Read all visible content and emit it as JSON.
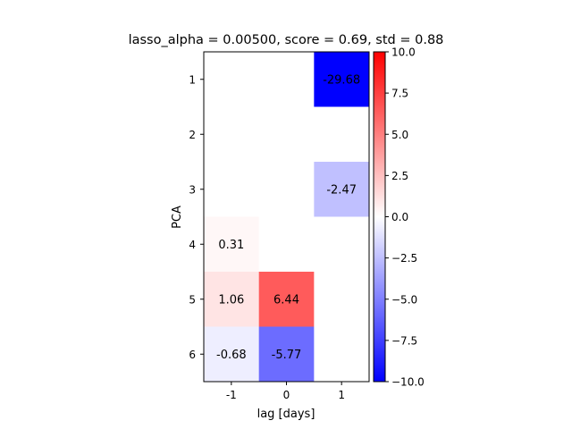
{
  "chart_data": {
    "type": "heatmap",
    "title": "lasso_alpha = 0.00500, score = 0.69, std = 0.88",
    "xlabel": "lag [days]",
    "ylabel": "PCA",
    "x_categories": [
      "-1",
      "0",
      "1"
    ],
    "y_categories": [
      "1",
      "2",
      "3",
      "4",
      "5",
      "6"
    ],
    "cells": [
      {
        "x": "1",
        "y": "1",
        "value": -29.68,
        "label": "-29.68"
      },
      {
        "x": "1",
        "y": "3",
        "value": -2.47,
        "label": "-2.47"
      },
      {
        "x": "-1",
        "y": "4",
        "value": 0.31,
        "label": "0.31"
      },
      {
        "x": "-1",
        "y": "5",
        "value": 1.06,
        "label": "1.06"
      },
      {
        "x": "0",
        "y": "5",
        "value": 6.44,
        "label": "6.44"
      },
      {
        "x": "-1",
        "y": "6",
        "value": -0.68,
        "label": "-0.68"
      },
      {
        "x": "0",
        "y": "6",
        "value": -5.77,
        "label": "-5.77"
      }
    ],
    "colormap": "bwr",
    "color_range": [
      -10,
      10
    ],
    "colorbar_ticks": [
      "10.0",
      "7.5",
      "5.0",
      "2.5",
      "0.0",
      "−2.5",
      "−5.0",
      "−7.5",
      "−10.0"
    ],
    "colorbar_tick_values": [
      10,
      7.5,
      5,
      2.5,
      0,
      -2.5,
      -5,
      -7.5,
      -10
    ],
    "grid": false
  }
}
